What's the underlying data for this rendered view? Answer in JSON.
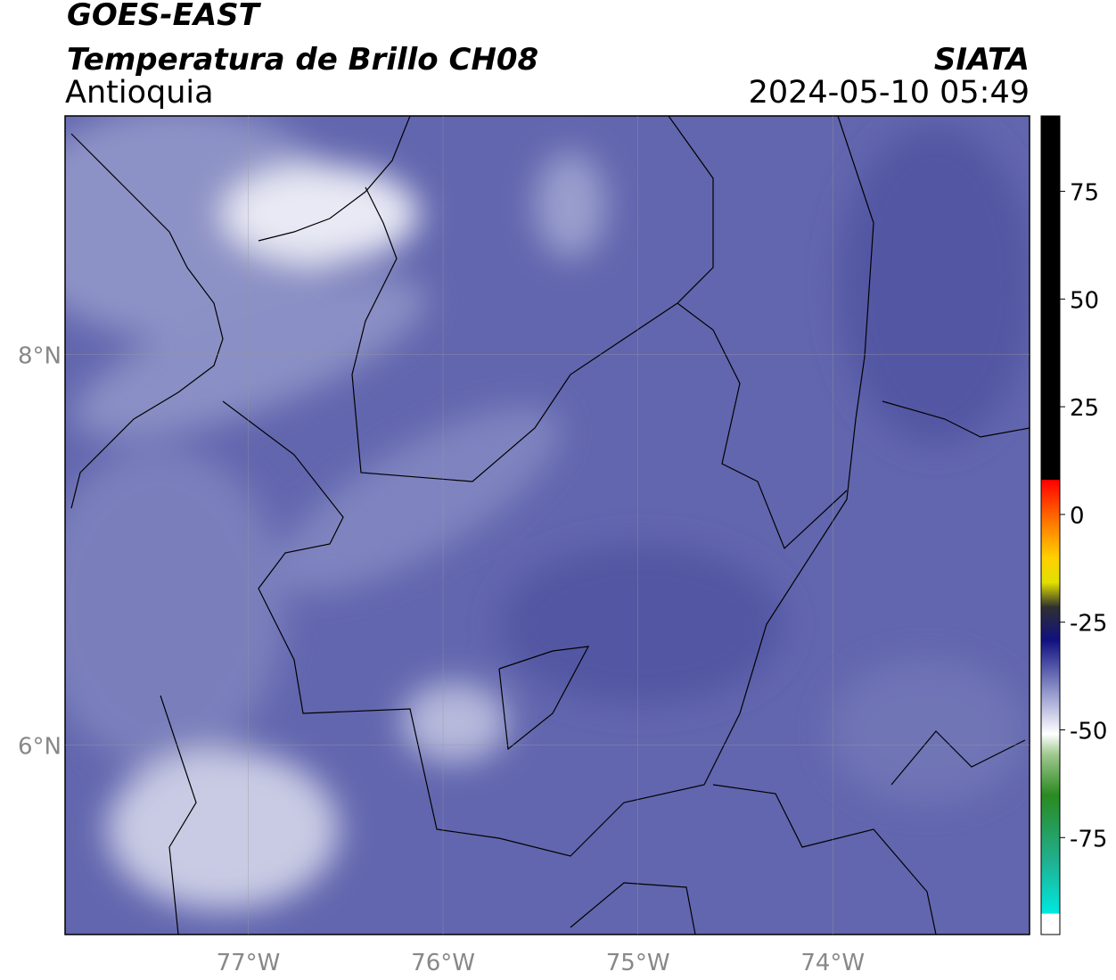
{
  "header": {
    "title": "GOES-EAST",
    "subtitle": "Temperatura de Brillo CH08",
    "region": "Antioquia",
    "source": "SIATA",
    "datetime": "2024-05-10 05:49"
  },
  "map": {
    "xlim": [
      -77.94,
      -72.99
    ],
    "ylim": [
      5.03,
      9.22
    ],
    "xticks": [
      {
        "value": -77,
        "label": "77°W"
      },
      {
        "value": -76,
        "label": "76°W"
      },
      {
        "value": -75,
        "label": "75°W"
      },
      {
        "value": -74,
        "label": "74°W"
      }
    ],
    "yticks": [
      {
        "value": 8,
        "label": "8°N"
      },
      {
        "value": 6,
        "label": "6°N"
      }
    ],
    "grid": true
  },
  "colorbar": {
    "lim": [
      -97.5,
      92.5
    ],
    "ticks": [
      75,
      50,
      25,
      0,
      -25,
      -50,
      -75
    ]
  }
}
